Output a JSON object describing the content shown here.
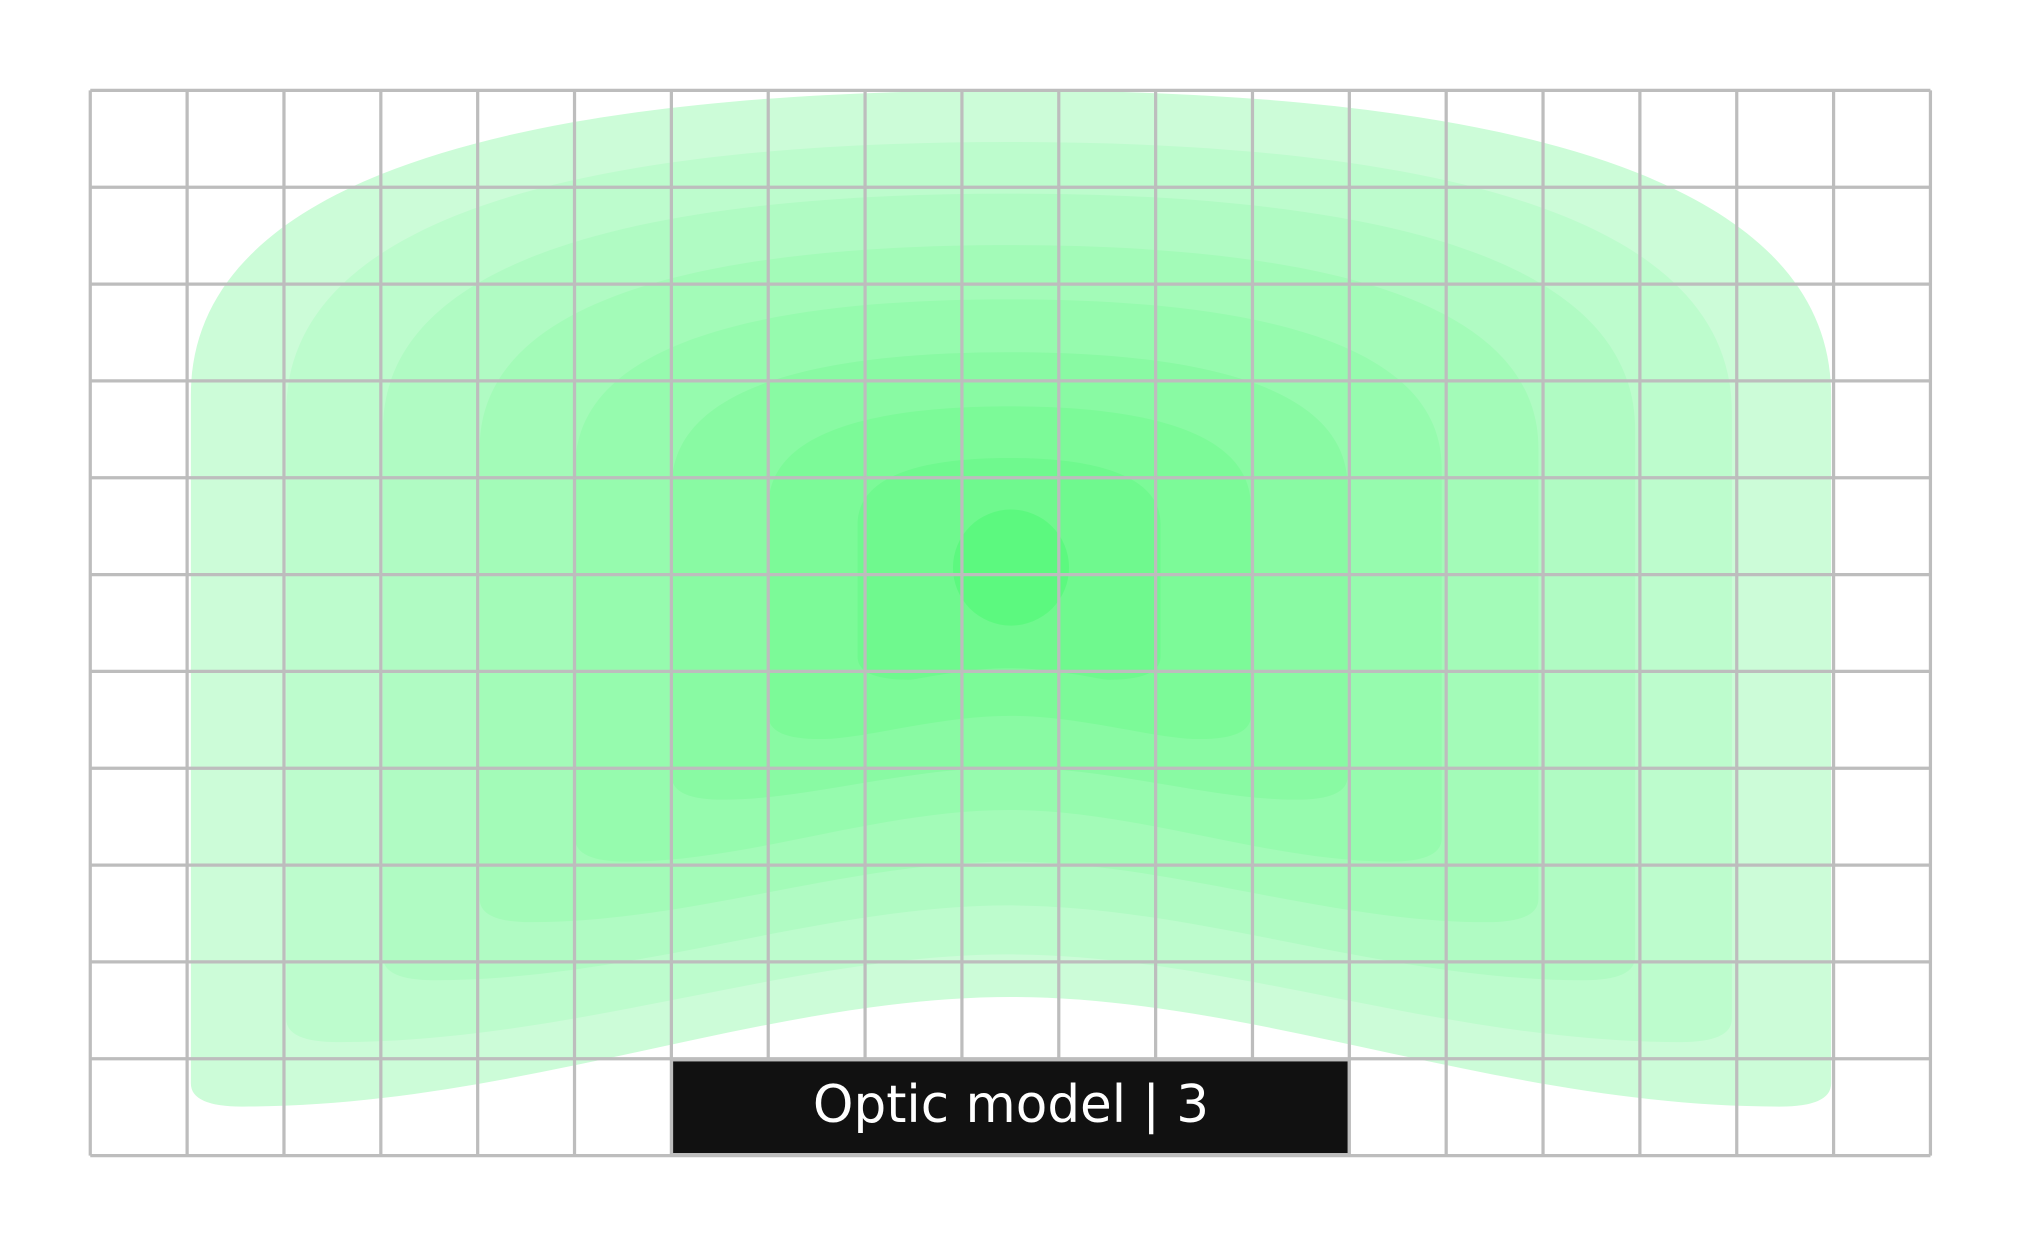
{
  "label": "Optic model | 3"
}
